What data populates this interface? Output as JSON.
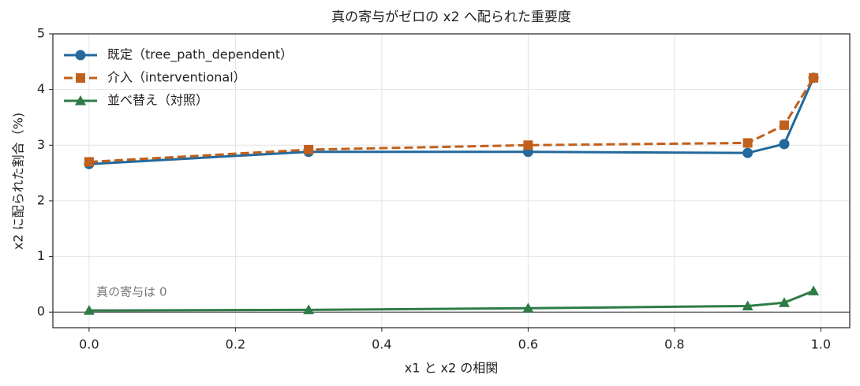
{
  "chart_data": {
    "type": "line",
    "title": "真の寄与がゼロの x2 へ配られた重要度",
    "xlabel": "x1 と x2 の相関",
    "ylabel": "x2 に配られた割合（%)",
    "annotation": "真の寄与は 0",
    "reference_line": 0,
    "x": [
      0,
      0.3,
      0.6,
      0.9,
      0.95,
      0.99
    ],
    "series": [
      {
        "name": "既定（tree_path_dependent）",
        "color": "#23699b",
        "marker": "circle",
        "linestyle": "solid",
        "values": [
          2.66,
          2.88,
          2.88,
          2.86,
          3.02,
          4.21
        ]
      },
      {
        "name": "介入（interventional）",
        "color": "#c0601c",
        "marker": "square",
        "linestyle": "dashed",
        "values": [
          2.7,
          2.92,
          3.0,
          3.04,
          3.36,
          4.21
        ]
      },
      {
        "name": "並べ替え（対照）",
        "color": "#2e7b46",
        "marker": "triangle",
        "linestyle": "solid",
        "values": [
          0.03,
          0.04,
          0.07,
          0.11,
          0.17,
          0.38
        ]
      }
    ],
    "xlim": [
      -0.0495,
      1.0395
    ],
    "ylim": [
      -0.28,
      5
    ],
    "xticks": [
      {
        "value": 0,
        "label": "0.0"
      },
      {
        "value": 0.2,
        "label": "0.2"
      },
      {
        "value": 0.4,
        "label": "0.4"
      },
      {
        "value": 0.6,
        "label": "0.6"
      },
      {
        "value": 0.8,
        "label": "0.8"
      },
      {
        "value": 1,
        "label": "1.0"
      }
    ],
    "yticks": [
      0,
      1,
      2,
      3,
      4,
      5
    ],
    "grid": true,
    "legend": "upper left"
  }
}
